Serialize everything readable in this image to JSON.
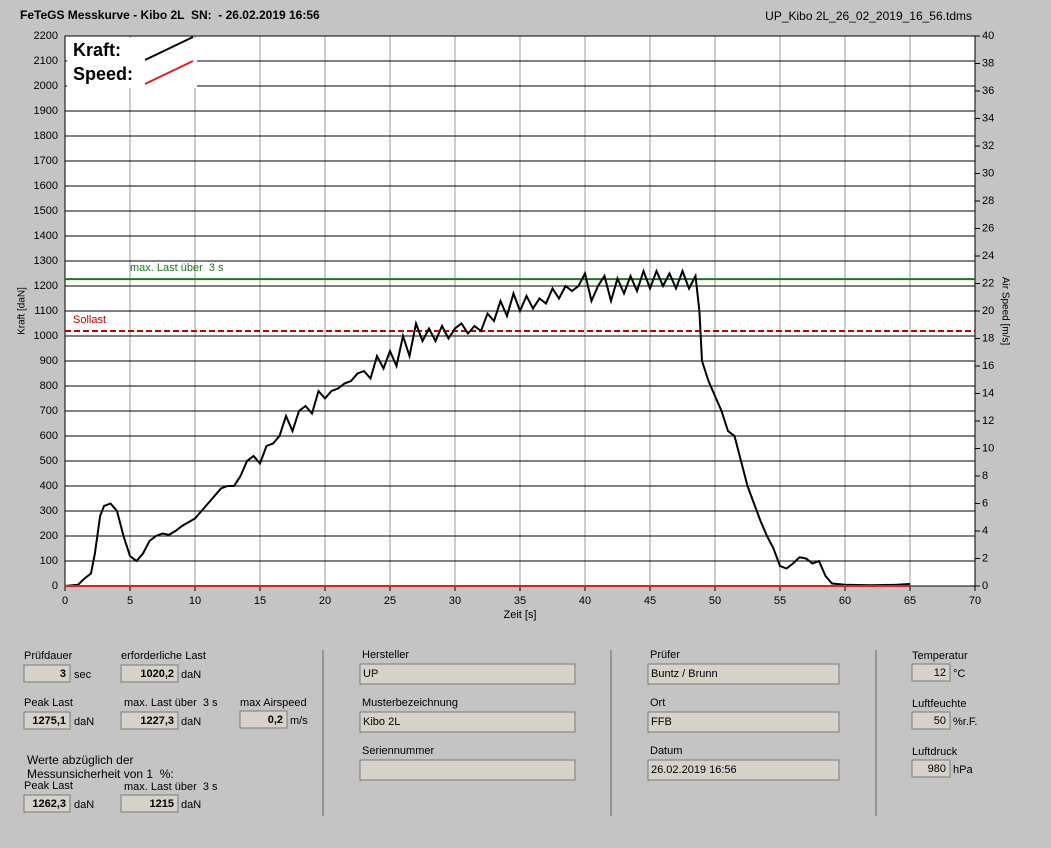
{
  "header": {
    "title": "FeTeGS Messkurve - Kibo 2L  SN:  - 26.02.2019 16:56",
    "file": "UP_Kibo 2L_26_02_2019_16_56.tdms"
  },
  "chart_data": {
    "type": "line",
    "x_label": "Zeit [s]",
    "y_label": "Kraft [daN]",
    "y2_label": "Air Speed [m/s]",
    "xlim": [
      0,
      70
    ],
    "xticks": [
      0,
      5,
      10,
      15,
      20,
      25,
      30,
      35,
      40,
      45,
      50,
      55,
      60,
      65,
      70
    ],
    "ylim": [
      0,
      2200
    ],
    "yticks": [
      0,
      100,
      200,
      300,
      400,
      500,
      600,
      700,
      800,
      900,
      1000,
      1100,
      1200,
      1300,
      1400,
      1500,
      1600,
      1700,
      1800,
      1900,
      2000,
      2100,
      2200
    ],
    "y2lim": [
      0,
      40
    ],
    "y2ticks": [
      0,
      2,
      4,
      6,
      8,
      10,
      12,
      14,
      16,
      18,
      20,
      22,
      24,
      26,
      28,
      30,
      32,
      34,
      36,
      38,
      40
    ],
    "grid": true,
    "legend": "upper left",
    "x": [
      0,
      1,
      1.5,
      2,
      2.3,
      2.7,
      3,
      3.5,
      4,
      4.5,
      5,
      5.5,
      6,
      6.5,
      7,
      7.5,
      8,
      8.5,
      9,
      10,
      10.5,
      11,
      11.5,
      12,
      12.5,
      13,
      13.5,
      14,
      14.5,
      15,
      15.5,
      16,
      16.5,
      17,
      17.5,
      18,
      18.5,
      19,
      19.5,
      20,
      20.5,
      21,
      21.5,
      22,
      22.5,
      23,
      23.5,
      24,
      24.5,
      25,
      25.5,
      26,
      26.5,
      27,
      27.5,
      28,
      28.5,
      29,
      29.5,
      30,
      30.5,
      31,
      31.5,
      32,
      32.5,
      33,
      33.5,
      34,
      34.5,
      35,
      35.5,
      36,
      36.5,
      37,
      37.5,
      38,
      38.5,
      39,
      39.5,
      40,
      40.5,
      41,
      41.5,
      42,
      42.5,
      43,
      43.5,
      44,
      44.5,
      45,
      45.5,
      46,
      46.5,
      47,
      47.5,
      48,
      48.5,
      48.8,
      49,
      49.5,
      50,
      50.5,
      51,
      51.5,
      52,
      52.5,
      53,
      53.5,
      54,
      54.5,
      55,
      55.5,
      56,
      56.5,
      57,
      57.5,
      58,
      58.5,
      59,
      60,
      62,
      64,
      65
    ],
    "series": [
      {
        "name": "Kraft:",
        "color": "#000000",
        "values": [
          0,
          5,
          30,
          50,
          130,
          280,
          320,
          330,
          300,
          200,
          120,
          100,
          130,
          180,
          200,
          210,
          205,
          220,
          240,
          270,
          300,
          330,
          360,
          390,
          400,
          400,
          440,
          500,
          520,
          490,
          560,
          570,
          600,
          680,
          620,
          700,
          720,
          690,
          780,
          750,
          780,
          790,
          810,
          820,
          850,
          860,
          830,
          920,
          870,
          940,
          880,
          1000,
          920,
          1050,
          980,
          1030,
          980,
          1040,
          990,
          1030,
          1050,
          1010,
          1040,
          1020,
          1090,
          1060,
          1140,
          1080,
          1170,
          1100,
          1160,
          1110,
          1150,
          1130,
          1190,
          1150,
          1200,
          1180,
          1200,
          1250,
          1140,
          1200,
          1240,
          1140,
          1230,
          1170,
          1240,
          1180,
          1260,
          1190,
          1260,
          1200,
          1250,
          1190,
          1260,
          1190,
          1240,
          1100,
          900,
          820,
          760,
          700,
          620,
          600,
          500,
          400,
          330,
          260,
          200,
          150,
          80,
          70,
          90,
          115,
          110,
          90,
          100,
          40,
          10,
          5,
          3,
          5,
          8
        ]
      },
      {
        "name": "Speed:",
        "color": "#e02020",
        "axis": "y2",
        "values": [
          0,
          0,
          0,
          0,
          0,
          0,
          0,
          0,
          0,
          0,
          0,
          0,
          0,
          0,
          0,
          0,
          0,
          0,
          0,
          0,
          0,
          0,
          0,
          0,
          0,
          0,
          0,
          0,
          0,
          0,
          0,
          0,
          0,
          0,
          0,
          0,
          0,
          0,
          0,
          0,
          0,
          0,
          0,
          0,
          0,
          0,
          0,
          0,
          0,
          0,
          0,
          0,
          0,
          0,
          0,
          0,
          0,
          0,
          0,
          0,
          0,
          0,
          0,
          0,
          0,
          0,
          0,
          0,
          0,
          0,
          0,
          0,
          0,
          0,
          0,
          0,
          0,
          0,
          0,
          0,
          0,
          0,
          0,
          0,
          0,
          0,
          0,
          0,
          0,
          0,
          0,
          0,
          0,
          0,
          0,
          0,
          0,
          0,
          0,
          0,
          0,
          0,
          0,
          0,
          0,
          0,
          0,
          0,
          0,
          0,
          0,
          0,
          0,
          0,
          0,
          0,
          0,
          0,
          0,
          0,
          0,
          0,
          0
        ]
      }
    ],
    "reference_lines": [
      {
        "label": "max. Last über  3 s",
        "value": 1227.3,
        "color": "#1a7a1a",
        "style": "solid"
      },
      {
        "label": "Sollast",
        "value": 1020.2,
        "color": "#c00000",
        "style": "dashed"
      }
    ]
  },
  "results": [
    {
      "label": "Prüfdauer",
      "value": "3",
      "unit": "sec"
    },
    {
      "label": "erforderliche Last",
      "value": "1020,2",
      "unit": "daN"
    },
    {
      "label": "Peak Last",
      "value": "1275,1",
      "unit": "daN"
    },
    {
      "label": "max. Last über  3 s",
      "value": "1227,3",
      "unit": "daN"
    },
    {
      "label": "max Airspeed",
      "value": "0,2",
      "unit": "m/s"
    },
    {
      "label": "Peak Last",
      "value": "1262,3",
      "unit": "daN"
    },
    {
      "label": "max. Last über  3 s",
      "value": "1215",
      "unit": "daN"
    }
  ],
  "note": [
    "Werte abzüglich der",
    "Messunsicherheit von 1  %:"
  ],
  "info": [
    {
      "label": "Hersteller",
      "value": "UP"
    },
    {
      "label": "Musterbezeichnung",
      "value": "Kibo 2L"
    },
    {
      "label": "Seriennummer"
    },
    {
      "label": "Prüfer",
      "value": "Buntz / Brunn"
    },
    {
      "label": "Ort",
      "value": "FFB"
    },
    {
      "label": "Datum",
      "value": "26.02.2019 16:56"
    }
  ],
  "conditions": [
    {
      "label": "Temperatur",
      "value": "12",
      "unit": "°C"
    },
    {
      "label": "Luftfeuchte",
      "value": "50",
      "unit": "%r.F."
    },
    {
      "label": "Luftdruck",
      "value": "980",
      "unit": "hPa"
    }
  ]
}
